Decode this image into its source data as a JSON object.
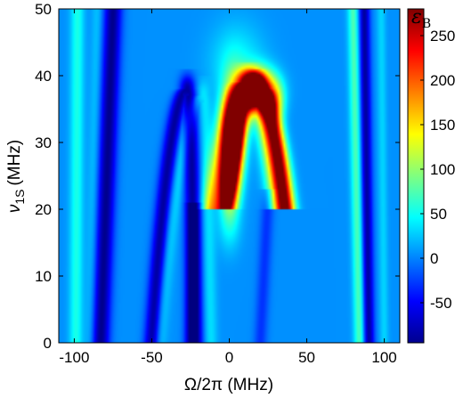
{
  "chart_data": {
    "type": "heatmap",
    "xlabel": "Ω/2π (MHz)",
    "ylabel_main": "ν",
    "ylabel_sub": "1S",
    "ylabel_unit": "(MHz)",
    "xlim": [
      -110,
      110
    ],
    "ylim": [
      0,
      50
    ],
    "x_ticks": [
      -100,
      -50,
      0,
      50,
      100
    ],
    "y_ticks": [
      0,
      10,
      20,
      30,
      40,
      50
    ],
    "colorbar": {
      "title_main": "ε",
      "title_sub": "B",
      "range": [
        -95,
        280
      ],
      "ticks": [
        -50,
        0,
        50,
        100,
        150,
        200,
        250
      ],
      "colormap": "jet"
    },
    "background_value": 5,
    "features": [
      {
        "kind": "vertical-band",
        "x_at_top": -75,
        "x_at_bottom": -83,
        "y_range": [
          0,
          50
        ],
        "width": 4,
        "value": -90
      },
      {
        "kind": "vertical-band",
        "x_at_top": -98,
        "x_at_bottom": -99,
        "y_range": [
          0,
          50
        ],
        "width": 3,
        "value": 55
      },
      {
        "kind": "vertical-band",
        "x_at_top": -85,
        "x_at_bottom": -90,
        "y_range": [
          0,
          50
        ],
        "width": 2.5,
        "value": 25
      },
      {
        "kind": "vertical-band",
        "x_at_top": 80,
        "x_at_bottom": 84,
        "y_range": [
          0,
          50
        ],
        "width": 2.5,
        "value": 75
      },
      {
        "kind": "vertical-band",
        "x_at_top": 87,
        "x_at_bottom": 90,
        "y_range": [
          0,
          50
        ],
        "width": 2.5,
        "value": -85
      },
      {
        "kind": "vertical-band",
        "x_at_top": 98,
        "x_at_bottom": 100,
        "y_range": [
          0,
          50
        ],
        "width": 2,
        "value": 30
      },
      {
        "kind": "arc",
        "x_start": -50,
        "x_peak": -27,
        "y_peak": 38,
        "x_end": -22,
        "y_start": 0,
        "width": 3.5,
        "value": -85
      },
      {
        "kind": "arc",
        "x_start": -45,
        "x_peak": -17,
        "y_peak": 37,
        "x_end": -12,
        "y_start": 0,
        "width": 3,
        "value": 35
      },
      {
        "kind": "arc",
        "x_start": -10,
        "x_peak": 12,
        "y_peak": 39,
        "x_end": 33,
        "y_start": 20,
        "width": 5,
        "value": 150
      },
      {
        "kind": "arc",
        "x_start": -2,
        "x_peak": 18,
        "y_peak": 38,
        "x_end": 37,
        "y_start": 20,
        "width": 4,
        "value": 200
      },
      {
        "kind": "vertical-band",
        "x_at_top": 25,
        "x_at_bottom": 20,
        "y_range": [
          0,
          22
        ],
        "width": 3,
        "value": -30
      },
      {
        "kind": "vertical-band",
        "x_at_top": -23,
        "x_at_bottom": -25,
        "y_range": [
          0,
          20
        ],
        "width": 3,
        "value": -45
      },
      {
        "kind": "blob",
        "x": 2,
        "y": 31,
        "sx": 5,
        "sy": 5,
        "value": 240
      },
      {
        "kind": "blob",
        "x": 18,
        "y": 38,
        "sx": 8,
        "sy": 2,
        "value": 280
      },
      {
        "kind": "blob",
        "x": 0,
        "y": 24,
        "sx": 4,
        "sy": 3,
        "value": 120
      },
      {
        "kind": "blob",
        "x": 30,
        "y": 36,
        "sx": 4,
        "sy": 2,
        "value": 100
      },
      {
        "kind": "blob",
        "x": 0,
        "y": 18,
        "sx": 5,
        "sy": 3,
        "value": 45
      },
      {
        "kind": "blob",
        "x": 5,
        "y": 42,
        "sx": 12,
        "sy": 4,
        "value": 45
      }
    ]
  }
}
